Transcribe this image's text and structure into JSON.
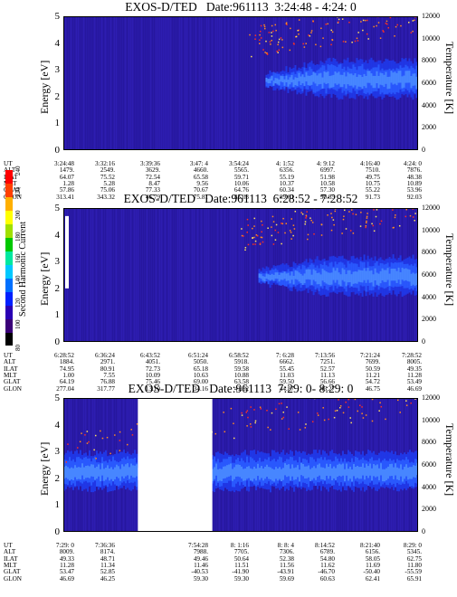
{
  "chart_data": [
    {
      "type": "heatmap",
      "title": "EXOS-D/TED   Date:961113  3:24:48 - 4:24: 0",
      "ylabel": "Energy [eV]",
      "ylabel_right": "Temperature [K]",
      "ylim": [
        0,
        5
      ],
      "ylim_right": [
        0,
        12000
      ],
      "yticks": [
        "0",
        "1",
        "2",
        "3",
        "4",
        "5"
      ],
      "yticks_right": [
        "0",
        "2000",
        "4000",
        "6000",
        "8000",
        "10000",
        "12000"
      ],
      "band_start_fraction": 0.57,
      "band_center_ev": 2.6,
      "gap": null,
      "table": {
        "labels": [
          "UT",
          "ALT",
          "ILAT",
          "MLT",
          "GLAT",
          "GLON"
        ],
        "columns": [
          [
            "3:24:48",
            "1479.",
            "64.07",
            "1.28",
            "57.86",
            "313.41"
          ],
          [
            "3:32:16",
            "2549.",
            "75.52",
            "5.28",
            "75.06",
            "343.32"
          ],
          [
            "3:39:36",
            "3629.",
            "72.54",
            "8.47",
            "77.33",
            "46.79"
          ],
          [
            "3:47: 4",
            "4660.",
            "65.58",
            "9.56",
            "70.67",
            "75.81"
          ],
          [
            "3:54:24",
            "5565.",
            "59.71",
            "10.06",
            "64.76",
            "85.03"
          ],
          [
            "4: 1:52",
            "6356.",
            "55.19",
            "10.37",
            "60.34",
            "89.01"
          ],
          [
            "4: 9:12",
            "6997.",
            "51.98",
            "10.58",
            "57.30",
            "90.85"
          ],
          [
            "4:16:40",
            "7510.",
            "49.75",
            "10.75",
            "55.22",
            "91.73"
          ],
          [
            "4:24: 0",
            "7876.",
            "48.38",
            "10.89",
            "53.96",
            "92.03"
          ]
        ]
      }
    },
    {
      "type": "heatmap",
      "title": "EXOS-D/TED   Date:961113  6:28:52 - 7:28:52",
      "ylabel": "Energy [eV]",
      "ylabel_right": "Temperature [K]",
      "ylim": [
        0,
        5
      ],
      "ylim_right": [
        0,
        12000
      ],
      "yticks": [
        "0",
        "1",
        "2",
        "3",
        "4",
        "5"
      ],
      "yticks_right": [
        "0",
        "2000",
        "4000",
        "6000",
        "8000",
        "10000",
        "12000"
      ],
      "band_start_fraction": 0.55,
      "band_center_ev": 2.4,
      "gap": null,
      "table": {
        "labels": [
          "UT",
          "ALT",
          "ILAT",
          "MLT",
          "GLAT",
          "GLON"
        ],
        "columns": [
          [
            "6:28:52",
            "1884.",
            "74.95",
            "1.00",
            "64.19",
            "277.04"
          ],
          [
            "6:36:24",
            "2971.",
            "80.91",
            "7.55",
            "76.88",
            "317.77"
          ],
          [
            "6:43:52",
            "4051.",
            "72.73",
            "10.09",
            "75.46",
            "13.10"
          ],
          [
            "6:51:24",
            "5050.",
            "65.18",
            "10.63",
            "69.00",
            "34.16"
          ],
          [
            "6:58:52",
            "5918.",
            "59.58",
            "10.88",
            "63.58",
            "41.62"
          ],
          [
            "7: 6:28",
            "6662.",
            "55.45",
            "11.03",
            "59.50",
            "44.87"
          ],
          [
            "7:13:56",
            "7251.",
            "52.57",
            "11.13",
            "56.66",
            "46.27"
          ],
          [
            "7:21:24",
            "7699.",
            "50.59",
            "11.21",
            "54.72",
            "46.75"
          ],
          [
            "7:28:52",
            "8005.",
            "49.35",
            "11.28",
            "53.49",
            "46.69"
          ]
        ]
      }
    },
    {
      "type": "heatmap",
      "title": "EXOS-D/TED   Date:961113  7:29: 0- 8:29: 0",
      "ylabel": "Energy [eV]",
      "ylabel_right": "Temperature [K]",
      "ylim": [
        0,
        5
      ],
      "ylim_right": [
        0,
        12000
      ],
      "yticks": [
        "0",
        "1",
        "2",
        "3",
        "4",
        "5"
      ],
      "yticks_right": [
        "0",
        "2000",
        "4000",
        "6000",
        "8000",
        "10000",
        "12000"
      ],
      "band_start_fraction": 0.0,
      "band_center_ev": 2.2,
      "gap": [
        0.21,
        0.42
      ],
      "table": {
        "labels": [
          "UT",
          "ALT",
          "ILAT",
          "MLT",
          "GLAT",
          "GLON"
        ],
        "columns": [
          [
            "7:29: 0",
            "8009.",
            "49.33",
            "11.28",
            "53.47",
            "46.69"
          ],
          [
            "7:36:36",
            "8174.",
            "48.71",
            "11.34",
            "52.85",
            "46.25"
          ],
          [
            "",
            "",
            "",
            "",
            "",
            ""
          ],
          [
            "7:54:28",
            "7988.",
            "49.46",
            "11.46",
            "-40.53",
            "59.30"
          ],
          [
            "8: 1:16",
            "7705.",
            "50.64",
            "11.51",
            "-41.90",
            "59.30"
          ],
          [
            "8: 8: 4",
            "7306.",
            "52.38",
            "11.56",
            "-43.91",
            "59.69"
          ],
          [
            "8:14:52",
            "6789.",
            "54.80",
            "11.62",
            "-46.70",
            "60.63"
          ],
          [
            "8:21:40",
            "6156.",
            "58.05",
            "11.69",
            "-50.40",
            "62.41"
          ],
          [
            "8:29: 0",
            "5345.",
            "62.75",
            "11.80",
            "-55.59",
            "65.91"
          ]
        ]
      }
    }
  ],
  "colorbar": {
    "label": "Second Harmonic Current",
    "ticks": [
      "80",
      "100",
      "120",
      "140",
      "160",
      "180",
      "200",
      "220",
      "240"
    ],
    "colors": [
      "#000000",
      "#3a0078",
      "#2a00b4",
      "#0020ff",
      "#0070ff",
      "#00c8ff",
      "#00e8a0",
      "#00c800",
      "#a0e000",
      "#ffff00",
      "#ffb000",
      "#ff4000",
      "#ff0000"
    ]
  }
}
